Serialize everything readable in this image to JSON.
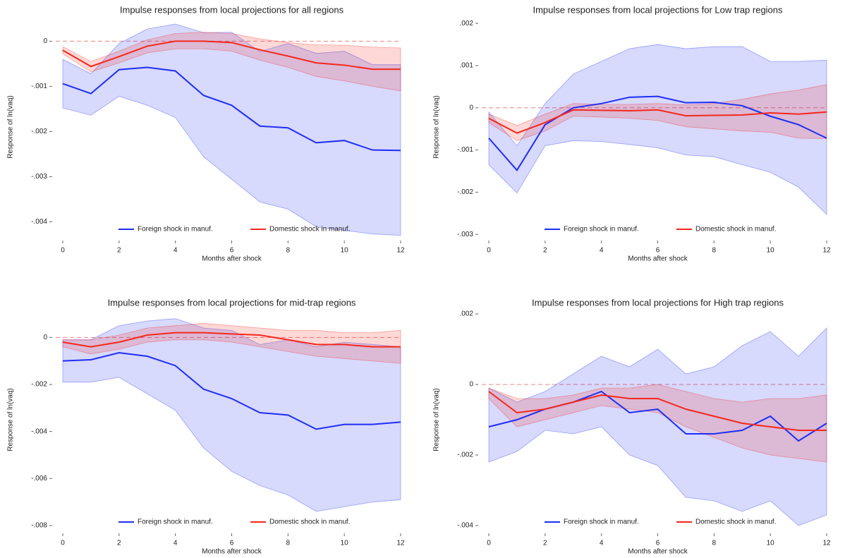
{
  "chart_data": [
    {
      "type": "line",
      "title": "Impulse responses from local projections for all regions",
      "xlabel": "Months after shock",
      "ylabel": "Response of ln(vaq)",
      "x": [
        0,
        1,
        2,
        3,
        4,
        5,
        6,
        7,
        8,
        9,
        10,
        11,
        12
      ],
      "xlim": [
        0,
        12
      ],
      "xticks": [
        0,
        2,
        4,
        6,
        8,
        10,
        12
      ],
      "ylim": [
        -0.0044,
        0.0006
      ],
      "yticks": [
        0,
        {
          "value": -0.001,
          "label": "-.001"
        },
        {
          "value": -0.002,
          "label": "-.002"
        },
        {
          "value": -0.003,
          "label": "-.003"
        },
        {
          "value": -0.004,
          "label": "-.004"
        }
      ],
      "hline": 0,
      "series": [
        {
          "name": "Foreign shock in manuf.",
          "color": "#1f2ef5",
          "values": [
            -0.00094,
            -0.00116,
            -0.00063,
            -0.00058,
            -0.00066,
            -0.0012,
            -0.00142,
            -0.00188,
            -0.00192,
            -0.00225,
            -0.0022,
            -0.00241,
            -0.00242
          ],
          "upper": [
            -0.0004,
            -0.00072,
            -5e-05,
            0.00027,
            0.00038,
            0.00019,
            0.0002,
            -0.00023,
            -5e-05,
            -0.00027,
            -0.00022,
            -0.00052,
            -0.00052
          ],
          "lower": [
            -0.00148,
            -0.00164,
            -0.00122,
            -0.00142,
            -0.00169,
            -0.00256,
            -0.00306,
            -0.00356,
            -0.00372,
            -0.00411,
            -0.00419,
            -0.00427,
            -0.0043
          ]
        },
        {
          "name": "Domestic shock in manuf.",
          "color": "#f5281e",
          "values": [
            -0.0002,
            -0.00056,
            -0.00034,
            -0.00011,
            0,
            0,
            -3e-05,
            -0.00019,
            -0.00033,
            -0.00048,
            -0.00053,
            -0.00062,
            -0.00062
          ],
          "upper": [
            -0.00012,
            -0.00045,
            -0.00022,
            3e-05,
            0.00017,
            0.0002,
            0.00017,
            5e-05,
            -3e-05,
            -8e-05,
            -9e-05,
            -0.00013,
            -0.00015
          ],
          "lower": [
            -0.00028,
            -0.00068,
            -0.00048,
            -0.00026,
            -0.00017,
            -0.00017,
            -0.00022,
            -0.00042,
            -0.00058,
            -0.00078,
            -0.00088,
            -0.001,
            -0.0011
          ]
        }
      ]
    },
    {
      "type": "line",
      "title": "Impulse responses from local projections for Low trap regions",
      "xlabel": "Months after shock",
      "ylabel": "Response of ln(vaq)",
      "x": [
        0,
        1,
        2,
        3,
        4,
        5,
        6,
        7,
        8,
        9,
        10,
        11,
        12
      ],
      "xlim": [
        0,
        12
      ],
      "xticks": [
        0,
        2,
        4,
        6,
        8,
        10,
        12
      ],
      "ylim": [
        -0.00313,
        0.00222
      ],
      "yticks": [
        {
          "value": 0.002,
          "label": ".002"
        },
        {
          "value": 0.001,
          "label": ".001"
        },
        0,
        {
          "value": -0.001,
          "label": "-.001"
        },
        {
          "value": -0.002,
          "label": "-.002"
        },
        {
          "value": -0.003,
          "label": "-.003"
        }
      ],
      "hline": 0,
      "series": [
        {
          "name": "Foreign shock in manuf.",
          "color": "#1f2ef5",
          "values": [
            -0.00072,
            -0.00148,
            -0.0004,
            0,
            0.0001,
            0.00025,
            0.00027,
            0.00012,
            0.00013,
            5e-05,
            -0.0002,
            -0.0004,
            -0.00072
          ],
          "upper": [
            -0.0001,
            -0.0009,
            0.0001,
            0.0008,
            0.0011,
            0.0014,
            0.0015,
            0.0014,
            0.00145,
            0.00145,
            0.0011,
            0.0011,
            0.00113
          ],
          "lower": [
            -0.00135,
            -0.00202,
            -0.0009,
            -0.00078,
            -0.0008,
            -0.00087,
            -0.00095,
            -0.00112,
            -0.00116,
            -0.00135,
            -0.00153,
            -0.00188,
            -0.00253
          ]
        },
        {
          "name": "Domestic shock in manuf.",
          "color": "#f5281e",
          "values": [
            -0.00025,
            -0.0006,
            -0.00035,
            -5e-05,
            -6e-05,
            -7e-05,
            -5e-05,
            -0.00019,
            -0.00018,
            -0.00017,
            -0.00012,
            -0.00015,
            -0.0001
          ],
          "upper": [
            -0.00015,
            -0.00042,
            -0.00015,
            0.0001,
            8e-05,
            8e-05,
            0.0001,
            7e-05,
            0.0001,
            0.0002,
            0.00033,
            0.00042,
            0.00055
          ],
          "lower": [
            -0.00035,
            -0.00078,
            -0.00055,
            -0.0002,
            -0.00022,
            -0.00025,
            -0.0003,
            -0.00045,
            -0.0005,
            -0.00055,
            -0.00058,
            -0.00072,
            -0.00073
          ]
        }
      ]
    },
    {
      "type": "line",
      "title": "Impulse responses from local projections for mid-trap regions",
      "xlabel": "Months after shock",
      "ylabel": "Response of ln(vaq)",
      "x": [
        0,
        1,
        2,
        3,
        4,
        5,
        6,
        7,
        8,
        9,
        10,
        11,
        12
      ],
      "xlim": [
        0,
        12
      ],
      "xticks": [
        0,
        2,
        4,
        6,
        8,
        10,
        12
      ],
      "ylim": [
        -0.0083,
        0.0013
      ],
      "yticks": [
        0,
        {
          "value": -0.002,
          "label": "-.002"
        },
        {
          "value": -0.004,
          "label": "-.004"
        },
        {
          "value": -0.006,
          "label": "-.006"
        },
        {
          "value": -0.008,
          "label": "-.008"
        }
      ],
      "hline": 0,
      "series": [
        {
          "name": "Foreign shock in manuf.",
          "color": "#1f2ef5",
          "values": [
            -0.001,
            -0.00095,
            -0.00065,
            -0.0008,
            -0.0012,
            -0.0022,
            -0.0026,
            -0.0032,
            -0.0033,
            -0.0039,
            -0.0037,
            -0.0037,
            -0.0036
          ],
          "upper": [
            -0.0001,
            -0.0001,
            0.0005,
            0.0007,
            0.0008,
            0.0004,
            0.0003,
            -0.0003,
            -0.0001,
            -0.0004,
            -0.0002,
            -0.0003,
            -0.0004
          ],
          "lower": [
            -0.0019,
            -0.0019,
            -0.0017,
            -0.0024,
            -0.0031,
            -0.0047,
            -0.0057,
            -0.0063,
            -0.0067,
            -0.0074,
            -0.0072,
            -0.007,
            -0.0069
          ]
        },
        {
          "name": "Domestic shock in manuf.",
          "color": "#f5281e",
          "values": [
            -0.0002,
            -0.0004,
            -0.0002,
            0.0001,
            0.0002,
            0.0002,
            0.00015,
            0.0001,
            -0.0001,
            -0.0003,
            -0.0003,
            -0.0004,
            -0.0004
          ],
          "upper": [
            -0.0001,
            -0.0001,
            0.0001,
            0.0004,
            0.0005,
            0.0006,
            0.0005,
            0.0004,
            0.0003,
            0.0003,
            0.0002,
            0.0002,
            0.0003
          ],
          "lower": [
            -0.0004,
            -0.0007,
            -0.0005,
            -0.0002,
            -0.0001,
            -0.0001,
            -0.0002,
            -0.0004,
            -0.0006,
            -0.0008,
            -0.0009,
            -0.001,
            -0.0011
          ]
        }
      ]
    },
    {
      "type": "line",
      "title": "Impulse responses from local projections for High trap regions",
      "xlabel": "Months after shock",
      "ylabel": "Response of ln(vaq)",
      "x": [
        0,
        1,
        2,
        3,
        4,
        5,
        6,
        7,
        8,
        9,
        10,
        11,
        12
      ],
      "xlim": [
        0,
        12
      ],
      "xticks": [
        0,
        2,
        4,
        6,
        8,
        10,
        12
      ],
      "ylim": [
        -0.0042,
        0.0022
      ],
      "yticks": [
        {
          "value": 0.002,
          "label": ".002"
        },
        0,
        {
          "value": -0.002,
          "label": "-.002"
        },
        {
          "value": -0.004,
          "label": "-.004"
        }
      ],
      "hline": 0,
      "series": [
        {
          "name": "Foreign shock in manuf.",
          "color": "#1f2ef5",
          "values": [
            -0.0012,
            -0.001,
            -0.0007,
            -0.0005,
            -0.0002,
            -0.0008,
            -0.0007,
            -0.0014,
            -0.0014,
            -0.0013,
            -0.0009,
            -0.0016,
            -0.0011
          ],
          "upper": [
            -0.0001,
            -0.0005,
            -0.0002,
            0.0003,
            0.0008,
            0.0005,
            0.001,
            0.0003,
            0.0005,
            0.0011,
            0.0015,
            0.0008,
            0.0016
          ],
          "lower": [
            -0.0022,
            -0.0019,
            -0.0013,
            -0.0014,
            -0.0012,
            -0.002,
            -0.0023,
            -0.0032,
            -0.0033,
            -0.0036,
            -0.0033,
            -0.004,
            -0.0037
          ]
        },
        {
          "name": "Domestic shock in manuf.",
          "color": "#f5281e",
          "values": [
            -0.0002,
            -0.0008,
            -0.0007,
            -0.0005,
            -0.0003,
            -0.0004,
            -0.0004,
            -0.0007,
            -0.0009,
            -0.0011,
            -0.0012,
            -0.0013,
            -0.0013
          ],
          "upper": [
            -0.0001,
            -0.0004,
            -0.0004,
            -0.0003,
            -0.0001,
            -0.0001,
            0,
            -0.0002,
            -0.0004,
            -0.0005,
            -0.0004,
            -0.0004,
            -0.0003
          ],
          "lower": [
            -0.0004,
            -0.0012,
            -0.001,
            -0.0008,
            -0.0006,
            -0.0007,
            -0.0008,
            -0.0012,
            -0.0015,
            -0.0018,
            -0.002,
            -0.0021,
            -0.0022
          ]
        }
      ]
    }
  ]
}
